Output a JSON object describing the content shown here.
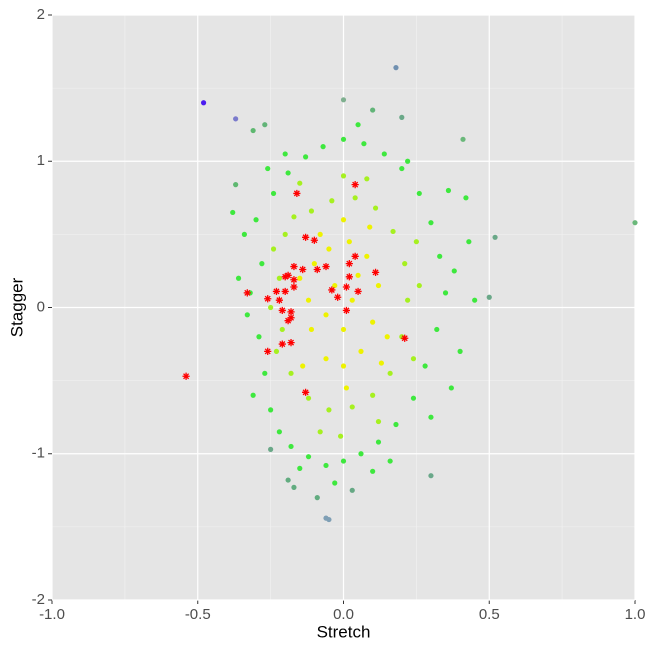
{
  "chart_data": {
    "type": "scatter",
    "x_label": "Stretch",
    "y_label": "Stagger",
    "xlim": [
      -1,
      1
    ],
    "ylim": [
      -2,
      2
    ],
    "xticks": [
      {
        "value": -1,
        "label": "-1.0"
      },
      {
        "value": -0.5,
        "label": "-0.5"
      },
      {
        "value": 0,
        "label": "0.0"
      },
      {
        "value": 0.5,
        "label": "0.5"
      },
      {
        "value": 1,
        "label": "1.0"
      }
    ],
    "yticks": [
      -2,
      -1,
      0,
      1,
      2
    ],
    "x_minor_grid": [
      -0.75,
      -0.25,
      0.25,
      0.75
    ],
    "y_minor_grid": [
      -1.5,
      -0.5,
      0.5,
      1.5
    ],
    "grid": true,
    "background": "#e5e5e5",
    "series": [
      {
        "color": "#3ee83e",
        "marker": "dot",
        "x": [
          -0.3,
          -0.28,
          -0.32,
          -0.29,
          -0.27,
          -0.25,
          -0.22,
          -0.18,
          -0.12,
          -0.06,
          0.0,
          0.06,
          0.12,
          0.18,
          0.24,
          0.28,
          0.32,
          0.35,
          0.33,
          0.3,
          0.26,
          0.2,
          0.14,
          0.07,
          0.0,
          -0.07,
          -0.13,
          -0.19,
          -0.24,
          -0.34,
          -0.33,
          0.38,
          0.4,
          0.43,
          0.37,
          -0.36,
          -0.2,
          0.1,
          -0.15,
          0.22,
          0.45,
          -0.31,
          0.3,
          -0.26,
          0.05,
          -0.03,
          0.16,
          0.42,
          -0.38,
          0.36
        ],
        "y": [
          0.6,
          0.3,
          0.1,
          -0.2,
          -0.45,
          -0.7,
          -0.85,
          -0.95,
          -1.02,
          -1.08,
          -1.05,
          -1.0,
          -0.92,
          -0.8,
          -0.62,
          -0.4,
          -0.15,
          0.1,
          0.35,
          0.58,
          0.78,
          0.95,
          1.05,
          1.12,
          1.15,
          1.1,
          1.03,
          0.92,
          0.78,
          0.5,
          -0.05,
          0.25,
          -0.3,
          0.45,
          -0.55,
          0.2,
          1.05,
          -1.12,
          -1.1,
          1.0,
          0.05,
          -0.6,
          -0.75,
          0.95,
          1.25,
          -1.2,
          -1.05,
          0.75,
          0.65,
          0.8
        ]
      },
      {
        "color": "#a6f020",
        "marker": "dot",
        "x": [
          -0.2,
          -0.22,
          -0.21,
          -0.18,
          -0.12,
          -0.05,
          0.03,
          0.1,
          0.16,
          0.2,
          0.22,
          0.21,
          0.17,
          0.11,
          0.04,
          -0.04,
          -0.11,
          -0.17,
          -0.24,
          -0.23,
          0.24,
          0.25,
          -0.15,
          0.08,
          -0.08,
          0.12,
          -0.25,
          0.26,
          0.0,
          -0.01
        ],
        "y": [
          0.5,
          0.2,
          -0.15,
          -0.45,
          -0.62,
          -0.7,
          -0.68,
          -0.6,
          -0.45,
          -0.2,
          0.05,
          0.3,
          0.52,
          0.68,
          0.75,
          0.73,
          0.66,
          0.62,
          0.4,
          -0.3,
          -0.35,
          0.45,
          0.85,
          0.88,
          -0.85,
          -0.78,
          0.0,
          0.15,
          0.9,
          -0.88
        ]
      },
      {
        "color": "#eef200",
        "marker": "dot",
        "x": [
          -0.1,
          -0.05,
          0.02,
          0.08,
          0.12,
          0.1,
          0.06,
          0.0,
          -0.06,
          -0.11,
          -0.12,
          -0.03,
          0.03,
          0.0,
          -0.06,
          0.05,
          -0.08,
          0.09,
          -0.14,
          0.13,
          0.0,
          0.01,
          -0.15,
          0.15
        ],
        "y": [
          0.3,
          0.4,
          0.45,
          0.35,
          0.15,
          -0.1,
          -0.3,
          -0.4,
          -0.35,
          -0.15,
          0.05,
          0.15,
          0.05,
          -0.15,
          -0.05,
          0.22,
          0.5,
          0.55,
          -0.4,
          -0.38,
          0.6,
          -0.55,
          0.2,
          -0.2
        ]
      },
      {
        "marker": "dot",
        "colors": [
          "#4b1cf0",
          "#7b7bcc",
          "#7090b0",
          "#7fb08f",
          "#7f9fb5",
          "#7f9fb5",
          "#6aa88a",
          "#6ab87a",
          "#6aa888",
          "#6aa888",
          "#6ab87a",
          "#5eb870",
          "#62b478",
          "#62b478",
          "#6aa888",
          "#6aa888",
          "#62ac80",
          "#62ac80",
          "#66a884",
          "#62ac80",
          "#5eb870"
        ],
        "x": [
          -0.48,
          -0.37,
          0.18,
          0.0,
          -0.06,
          -0.05,
          0.3,
          0.41,
          0.52,
          0.5,
          1.0,
          -0.31,
          -0.27,
          0.1,
          0.2,
          -0.25,
          -0.19,
          -0.17,
          0.03,
          -0.09,
          -0.37
        ],
        "y": [
          1.4,
          1.29,
          1.64,
          1.42,
          -1.44,
          -1.45,
          -1.15,
          1.15,
          0.48,
          0.07,
          0.58,
          1.21,
          1.25,
          1.35,
          1.3,
          -0.97,
          -1.18,
          -1.23,
          -1.25,
          -1.3,
          0.84
        ]
      },
      {
        "color": "#ff0000",
        "marker": "star",
        "x": [
          -0.16,
          0.04,
          -0.13,
          -0.1,
          0.04,
          0.02,
          0.11,
          -0.06,
          -0.09,
          -0.14,
          -0.17,
          -0.19,
          -0.2,
          -0.17,
          0.02,
          -0.04,
          0.01,
          0.05,
          -0.02,
          -0.33,
          -0.23,
          -0.2,
          -0.26,
          -0.22,
          -0.17,
          0.01,
          -0.21,
          -0.18,
          -0.19,
          -0.18,
          0.21,
          -0.18,
          -0.21,
          -0.26,
          -0.54,
          -0.13
        ],
        "y": [
          0.78,
          0.84,
          0.48,
          0.46,
          0.35,
          0.3,
          0.24,
          0.28,
          0.26,
          0.26,
          0.28,
          0.22,
          0.21,
          0.19,
          0.21,
          0.12,
          0.14,
          0.11,
          0.07,
          0.1,
          0.11,
          0.11,
          0.06,
          0.05,
          0.14,
          -0.02,
          -0.02,
          -0.03,
          -0.09,
          -0.07,
          -0.21,
          -0.24,
          -0.25,
          -0.3,
          -0.47,
          -0.58
        ]
      }
    ]
  }
}
